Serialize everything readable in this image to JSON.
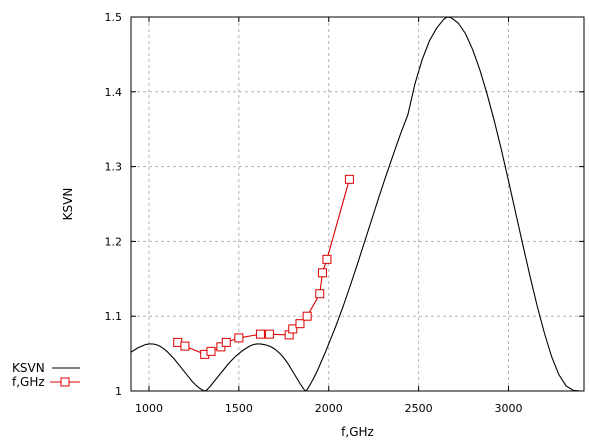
{
  "chart_data": {
    "type": "line",
    "title": "",
    "xlabel": "f,GHz",
    "ylabel": "KSVN",
    "xlim": [
      900,
      3420
    ],
    "ylim": [
      1.0,
      1.5
    ],
    "x_ticks": [
      1000,
      1500,
      2000,
      2500,
      3000
    ],
    "x_tick_labels": [
      "1000",
      "1500",
      "2000",
      "2500",
      "3000"
    ],
    "y_ticks": [
      1.0,
      1.1,
      1.2,
      1.3,
      1.4,
      1.5
    ],
    "y_tick_labels": [
      "1",
      "1.1",
      "1.2",
      "1.3",
      "1.4",
      "1.5"
    ],
    "grid": true,
    "legend_position": "bottom-left outside",
    "colors": {
      "ksvn": "#000000",
      "measured": "#dd0000",
      "grid": "#b4b4b4"
    },
    "series": [
      {
        "name": "KSVN",
        "style": "line",
        "x": [
          900,
          920,
          940,
          960,
          980,
          1000,
          1020,
          1040,
          1060,
          1080,
          1100,
          1120,
          1140,
          1160,
          1180,
          1200,
          1220,
          1240,
          1260,
          1280,
          1300,
          1310,
          1320,
          1340,
          1360,
          1380,
          1400,
          1420,
          1440,
          1460,
          1480,
          1500,
          1520,
          1540,
          1560,
          1580,
          1600,
          1620,
          1640,
          1660,
          1680,
          1700,
          1720,
          1740,
          1760,
          1780,
          1800,
          1820,
          1840,
          1860,
          1870,
          1880,
          1900,
          1920,
          1940,
          1960,
          1980,
          2000,
          2040,
          2080,
          2120,
          2160,
          2200,
          2240,
          2280,
          2320,
          2360,
          2400,
          2440,
          2480,
          2520,
          2560,
          2600,
          2640,
          2660,
          2680,
          2720,
          2760,
          2800,
          2840,
          2880,
          2920,
          2960,
          3000,
          3040,
          3080,
          3120,
          3160,
          3200,
          3240,
          3280,
          3320,
          3360,
          3400,
          3420
        ],
        "y": [
          1.052,
          1.055,
          1.058,
          1.06,
          1.062,
          1.063,
          1.063,
          1.062,
          1.06,
          1.057,
          1.053,
          1.048,
          1.043,
          1.037,
          1.031,
          1.025,
          1.019,
          1.013,
          1.008,
          1.004,
          1.001,
          1.0,
          1.001,
          1.006,
          1.012,
          1.018,
          1.024,
          1.03,
          1.036,
          1.041,
          1.046,
          1.05,
          1.054,
          1.057,
          1.06,
          1.062,
          1.063,
          1.063,
          1.062,
          1.061,
          1.059,
          1.056,
          1.052,
          1.047,
          1.041,
          1.034,
          1.026,
          1.018,
          1.01,
          1.003,
          1.0,
          1.002,
          1.01,
          1.019,
          1.029,
          1.04,
          1.051,
          1.063,
          1.087,
          1.113,
          1.141,
          1.17,
          1.2,
          1.23,
          1.26,
          1.289,
          1.317,
          1.344,
          1.369,
          1.411,
          1.443,
          1.468,
          1.485,
          1.497,
          1.5,
          1.499,
          1.492,
          1.478,
          1.457,
          1.43,
          1.398,
          1.362,
          1.323,
          1.281,
          1.238,
          1.195,
          1.153,
          1.113,
          1.077,
          1.046,
          1.022,
          1.007,
          1.001,
          1.0,
          1.0
        ]
      },
      {
        "name": "f,GHz",
        "style": "line-markers",
        "marker": "square",
        "x": [
          1160,
          1200,
          1310,
          1345,
          1400,
          1430,
          1500,
          1620,
          1670,
          1780,
          1800,
          1840,
          1880,
          1950,
          1965,
          1990,
          2115
        ],
        "y": [
          1.065,
          1.06,
          1.049,
          1.053,
          1.059,
          1.065,
          1.071,
          1.076,
          1.076,
          1.075,
          1.083,
          1.09,
          1.1,
          1.13,
          1.158,
          1.176,
          1.283
        ]
      }
    ]
  }
}
